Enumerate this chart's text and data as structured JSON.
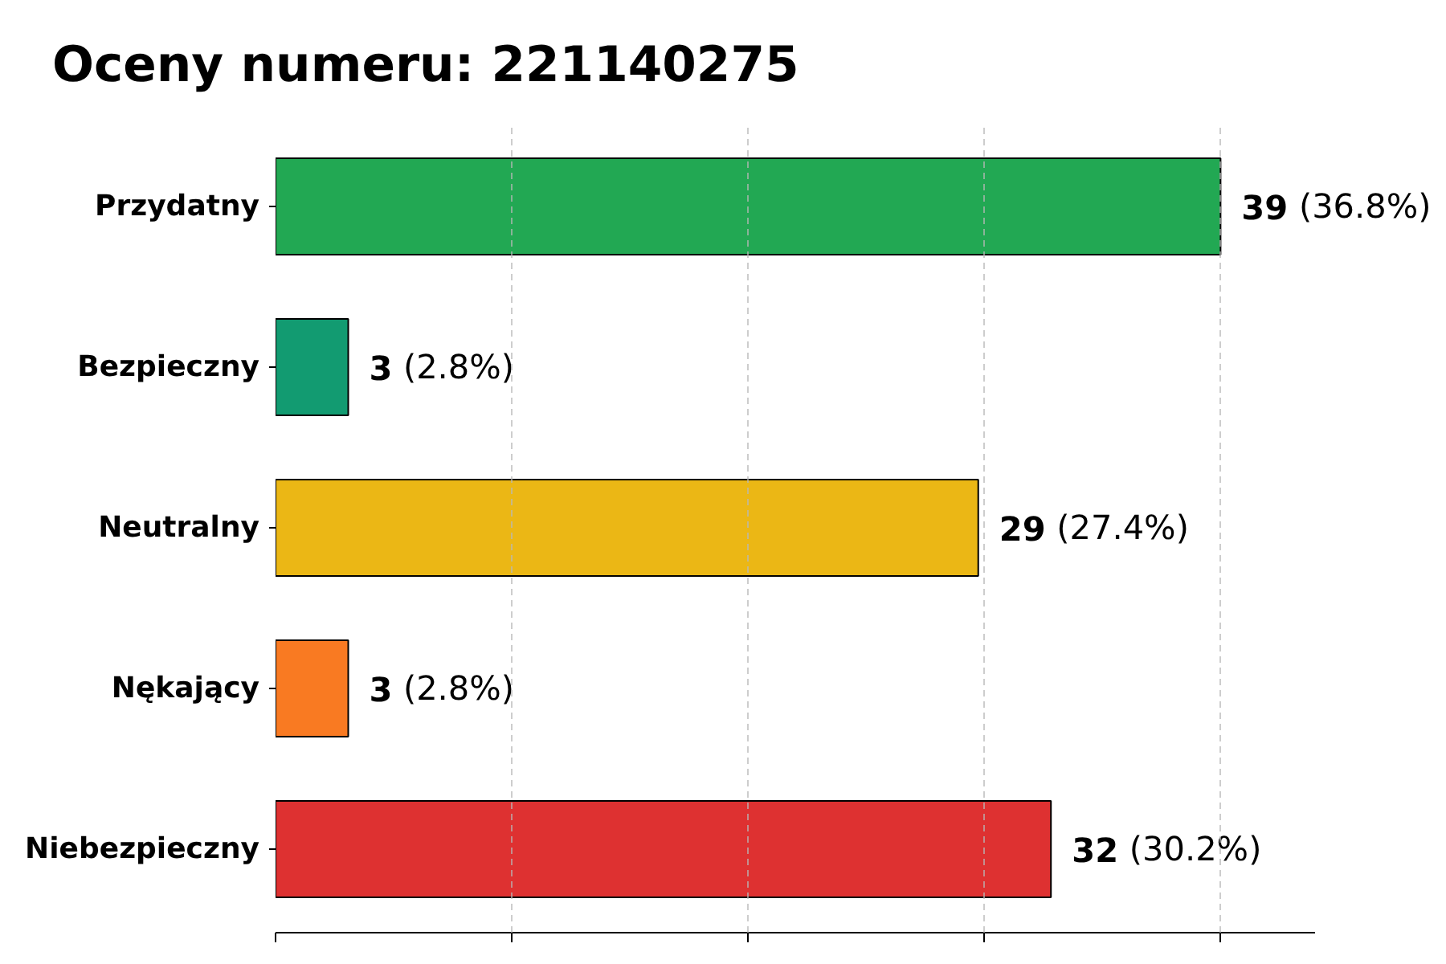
{
  "chart_data": {
    "type": "bar",
    "orientation": "horizontal",
    "title": "Oceny numeru: 221140275",
    "categories": [
      "Przydatny",
      "Bezpieczny",
      "Neutralny",
      "Nękający",
      "Niebezpieczny"
    ],
    "values": [
      39,
      3,
      29,
      3,
      32
    ],
    "colors": [
      "#16a34a",
      "#059669",
      "#eab308",
      "#f97316",
      "#dc2626"
    ],
    "value_labels": [
      "39 (36.8%)",
      "3 (2.8%)",
      "29 (27.4%)",
      "3 (2.8%)",
      "32 (30.2%)"
    ],
    "xlim": [
      0,
      42.9
    ],
    "xticks": [
      {
        "value": 0,
        "label": null
      },
      {
        "value": 9.75,
        "label": null
      },
      {
        "value": 19.5,
        "label": null
      },
      {
        "value": 29.25,
        "label": null
      },
      {
        "value": 39,
        "label": null
      }
    ],
    "tick_labels": "y",
    "grid": "x"
  }
}
